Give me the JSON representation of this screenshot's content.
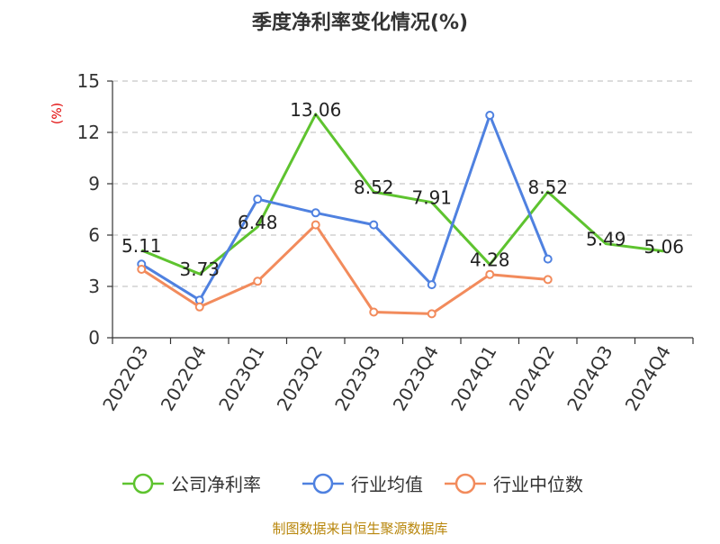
{
  "chart_data": {
    "type": "line",
    "title": "季度净利率变化情况(%)",
    "unit_label": "(%)",
    "categories": [
      "2022Q3",
      "2022Q4",
      "2023Q1",
      "2023Q2",
      "2023Q3",
      "2023Q4",
      "2024Q1",
      "2024Q2",
      "2024Q3",
      "2024Q4"
    ],
    "ylim": [
      0,
      15
    ],
    "yticks": [
      0,
      3,
      6,
      9,
      12,
      15
    ],
    "grid": "horizontal-dashed",
    "legend_position": "bottom",
    "series": [
      {
        "name": "公司净利率",
        "color": "#5ec32f",
        "marker": "none",
        "show_labels": true,
        "values": [
          5.11,
          3.73,
          6.48,
          13.06,
          8.52,
          7.91,
          4.28,
          8.52,
          5.49,
          5.06
        ],
        "labels": [
          "5.11",
          "3.73",
          "6.48",
          "13.06",
          "8.52",
          "7.91",
          "4.28",
          "8.52",
          "5.49",
          "5.06"
        ]
      },
      {
        "name": "行业均值",
        "color": "#4f81e0",
        "marker": "circle",
        "show_labels": false,
        "values": [
          4.3,
          2.2,
          8.1,
          7.3,
          6.6,
          3.1,
          13.0,
          4.6,
          null,
          null
        ]
      },
      {
        "name": "行业中位数",
        "color": "#f28b5c",
        "marker": "circle",
        "show_labels": false,
        "values": [
          4.0,
          1.8,
          3.3,
          6.6,
          1.5,
          1.4,
          3.7,
          3.4,
          null,
          null
        ]
      }
    ],
    "source": "制图数据来自恒生聚源数据库"
  }
}
